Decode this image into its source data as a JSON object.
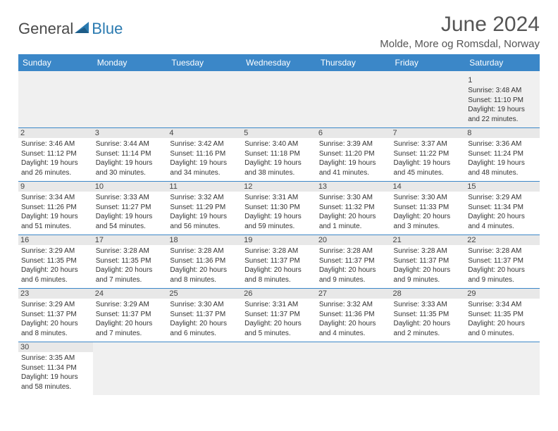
{
  "logo": {
    "word1": "General",
    "word2": "Blue"
  },
  "title": "June 2024",
  "location": "Molde, More og Romsdal, Norway",
  "colors": {
    "header_bg": "#3b87c8",
    "header_text": "#ffffff",
    "cell_border": "#3b87c8",
    "daynum_bg": "#e8e8e8",
    "empty_bg": "#f0f0f0",
    "text": "#333333",
    "title_text": "#555555",
    "logo_gray": "#4a4a4a",
    "logo_blue": "#2a7ab0"
  },
  "day_headers": [
    "Sunday",
    "Monday",
    "Tuesday",
    "Wednesday",
    "Thursday",
    "Friday",
    "Saturday"
  ],
  "weeks": [
    [
      null,
      null,
      null,
      null,
      null,
      null,
      {
        "n": "1",
        "sr": "3:48 AM",
        "ss": "11:10 PM",
        "dl": "19 hours and 22 minutes."
      }
    ],
    [
      {
        "n": "2",
        "sr": "3:46 AM",
        "ss": "11:12 PM",
        "dl": "19 hours and 26 minutes."
      },
      {
        "n": "3",
        "sr": "3:44 AM",
        "ss": "11:14 PM",
        "dl": "19 hours and 30 minutes."
      },
      {
        "n": "4",
        "sr": "3:42 AM",
        "ss": "11:16 PM",
        "dl": "19 hours and 34 minutes."
      },
      {
        "n": "5",
        "sr": "3:40 AM",
        "ss": "11:18 PM",
        "dl": "19 hours and 38 minutes."
      },
      {
        "n": "6",
        "sr": "3:39 AM",
        "ss": "11:20 PM",
        "dl": "19 hours and 41 minutes."
      },
      {
        "n": "7",
        "sr": "3:37 AM",
        "ss": "11:22 PM",
        "dl": "19 hours and 45 minutes."
      },
      {
        "n": "8",
        "sr": "3:36 AM",
        "ss": "11:24 PM",
        "dl": "19 hours and 48 minutes."
      }
    ],
    [
      {
        "n": "9",
        "sr": "3:34 AM",
        "ss": "11:26 PM",
        "dl": "19 hours and 51 minutes."
      },
      {
        "n": "10",
        "sr": "3:33 AM",
        "ss": "11:27 PM",
        "dl": "19 hours and 54 minutes."
      },
      {
        "n": "11",
        "sr": "3:32 AM",
        "ss": "11:29 PM",
        "dl": "19 hours and 56 minutes."
      },
      {
        "n": "12",
        "sr": "3:31 AM",
        "ss": "11:30 PM",
        "dl": "19 hours and 59 minutes."
      },
      {
        "n": "13",
        "sr": "3:30 AM",
        "ss": "11:32 PM",
        "dl": "20 hours and 1 minute."
      },
      {
        "n": "14",
        "sr": "3:30 AM",
        "ss": "11:33 PM",
        "dl": "20 hours and 3 minutes."
      },
      {
        "n": "15",
        "sr": "3:29 AM",
        "ss": "11:34 PM",
        "dl": "20 hours and 4 minutes."
      }
    ],
    [
      {
        "n": "16",
        "sr": "3:29 AM",
        "ss": "11:35 PM",
        "dl": "20 hours and 6 minutes."
      },
      {
        "n": "17",
        "sr": "3:28 AM",
        "ss": "11:35 PM",
        "dl": "20 hours and 7 minutes."
      },
      {
        "n": "18",
        "sr": "3:28 AM",
        "ss": "11:36 PM",
        "dl": "20 hours and 8 minutes."
      },
      {
        "n": "19",
        "sr": "3:28 AM",
        "ss": "11:37 PM",
        "dl": "20 hours and 8 minutes."
      },
      {
        "n": "20",
        "sr": "3:28 AM",
        "ss": "11:37 PM",
        "dl": "20 hours and 9 minutes."
      },
      {
        "n": "21",
        "sr": "3:28 AM",
        "ss": "11:37 PM",
        "dl": "20 hours and 9 minutes."
      },
      {
        "n": "22",
        "sr": "3:28 AM",
        "ss": "11:37 PM",
        "dl": "20 hours and 9 minutes."
      }
    ],
    [
      {
        "n": "23",
        "sr": "3:29 AM",
        "ss": "11:37 PM",
        "dl": "20 hours and 8 minutes."
      },
      {
        "n": "24",
        "sr": "3:29 AM",
        "ss": "11:37 PM",
        "dl": "20 hours and 7 minutes."
      },
      {
        "n": "25",
        "sr": "3:30 AM",
        "ss": "11:37 PM",
        "dl": "20 hours and 6 minutes."
      },
      {
        "n": "26",
        "sr": "3:31 AM",
        "ss": "11:37 PM",
        "dl": "20 hours and 5 minutes."
      },
      {
        "n": "27",
        "sr": "3:32 AM",
        "ss": "11:36 PM",
        "dl": "20 hours and 4 minutes."
      },
      {
        "n": "28",
        "sr": "3:33 AM",
        "ss": "11:35 PM",
        "dl": "20 hours and 2 minutes."
      },
      {
        "n": "29",
        "sr": "3:34 AM",
        "ss": "11:35 PM",
        "dl": "20 hours and 0 minutes."
      }
    ],
    [
      {
        "n": "30",
        "sr": "3:35 AM",
        "ss": "11:34 PM",
        "dl": "19 hours and 58 minutes."
      },
      null,
      null,
      null,
      null,
      null,
      null
    ]
  ],
  "labels": {
    "sunrise": "Sunrise: ",
    "sunset": "Sunset: ",
    "daylight": "Daylight: "
  }
}
